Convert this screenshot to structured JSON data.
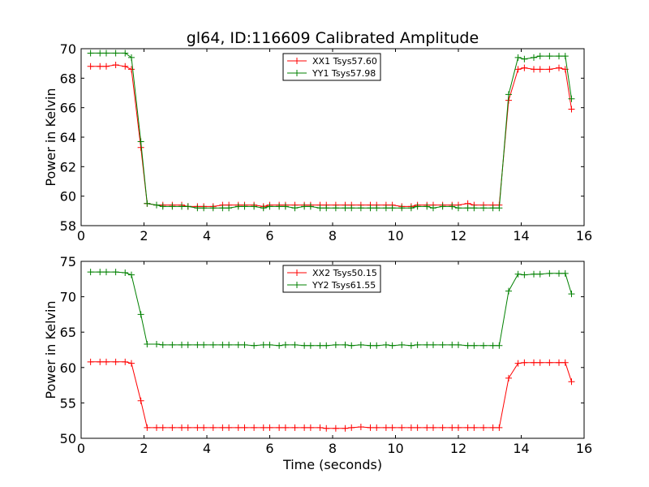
{
  "figure_title": "gl64, ID:116609 Calibrated Amplitude",
  "xlabel": "Time (seconds)",
  "colors": {
    "series1": "#ff0000",
    "series2": "#008000"
  },
  "chart_data": [
    {
      "type": "line",
      "xlabel": "",
      "ylabel": "Power in Kelvin",
      "xlim": [
        0,
        16
      ],
      "ylim": [
        58,
        70
      ],
      "xticks": [
        "0",
        "2",
        "4",
        "6",
        "8",
        "10",
        "12",
        "14",
        "16"
      ],
      "yticks": [
        "58",
        "60",
        "62",
        "64",
        "66",
        "68",
        "70"
      ],
      "grid": false,
      "legend_position": "top-center",
      "x": [
        0.3,
        0.6,
        0.8,
        1.1,
        1.4,
        1.6,
        1.9,
        2.1,
        2.4,
        2.6,
        2.9,
        3.2,
        3.4,
        3.7,
        3.9,
        4.2,
        4.5,
        4.7,
        5.0,
        5.2,
        5.5,
        5.8,
        6.0,
        6.3,
        6.5,
        6.8,
        7.1,
        7.3,
        7.6,
        7.8,
        8.1,
        8.4,
        8.6,
        8.9,
        9.2,
        9.4,
        9.7,
        9.9,
        10.2,
        10.5,
        10.7,
        11.0,
        11.2,
        11.5,
        11.8,
        12.0,
        12.3,
        12.5,
        12.8,
        13.1,
        13.3,
        13.6,
        13.9,
        14.1,
        14.4,
        14.6,
        14.9,
        15.2,
        15.4,
        15.6
      ],
      "series": [
        {
          "name": "XX1 Tsys57.60",
          "color": "#ff0000",
          "values": [
            68.8,
            68.8,
            68.8,
            68.9,
            68.8,
            68.6,
            63.3,
            59.5,
            59.4,
            59.4,
            59.4,
            59.4,
            59.3,
            59.3,
            59.3,
            59.3,
            59.4,
            59.4,
            59.4,
            59.4,
            59.4,
            59.3,
            59.4,
            59.4,
            59.4,
            59.4,
            59.4,
            59.4,
            59.4,
            59.4,
            59.4,
            59.4,
            59.4,
            59.4,
            59.4,
            59.4,
            59.4,
            59.4,
            59.3,
            59.3,
            59.4,
            59.4,
            59.4,
            59.4,
            59.4,
            59.4,
            59.5,
            59.4,
            59.4,
            59.4,
            59.4,
            66.5,
            68.6,
            68.7,
            68.6,
            68.6,
            68.6,
            68.7,
            68.6,
            65.9
          ]
        },
        {
          "name": "YY1 Tsys57.98",
          "color": "#008000",
          "values": [
            69.7,
            69.7,
            69.7,
            69.7,
            69.7,
            69.4,
            63.7,
            59.5,
            59.4,
            59.3,
            59.3,
            59.3,
            59.3,
            59.2,
            59.2,
            59.2,
            59.2,
            59.2,
            59.3,
            59.3,
            59.3,
            59.2,
            59.3,
            59.3,
            59.3,
            59.2,
            59.3,
            59.3,
            59.2,
            59.2,
            59.2,
            59.2,
            59.2,
            59.2,
            59.2,
            59.2,
            59.2,
            59.2,
            59.2,
            59.2,
            59.3,
            59.3,
            59.2,
            59.3,
            59.3,
            59.2,
            59.2,
            59.2,
            59.2,
            59.2,
            59.2,
            66.9,
            69.4,
            69.3,
            69.4,
            69.5,
            69.5,
            69.5,
            69.5,
            66.6
          ]
        }
      ]
    },
    {
      "type": "line",
      "xlabel": "Time (seconds)",
      "ylabel": "Power in Kelvin",
      "xlim": [
        0,
        16
      ],
      "ylim": [
        50,
        75
      ],
      "xticks": [
        "0",
        "2",
        "4",
        "6",
        "8",
        "10",
        "12",
        "14",
        "16"
      ],
      "yticks": [
        "50",
        "55",
        "60",
        "65",
        "70",
        "75"
      ],
      "grid": false,
      "legend_position": "top-center",
      "x": [
        0.3,
        0.6,
        0.8,
        1.1,
        1.4,
        1.6,
        1.9,
        2.1,
        2.4,
        2.6,
        2.9,
        3.2,
        3.4,
        3.7,
        3.9,
        4.2,
        4.5,
        4.7,
        5.0,
        5.2,
        5.5,
        5.8,
        6.0,
        6.3,
        6.5,
        6.8,
        7.1,
        7.3,
        7.6,
        7.8,
        8.1,
        8.4,
        8.6,
        8.9,
        9.2,
        9.4,
        9.7,
        9.9,
        10.2,
        10.5,
        10.7,
        11.0,
        11.2,
        11.5,
        11.8,
        12.0,
        12.3,
        12.5,
        12.8,
        13.1,
        13.3,
        13.6,
        13.9,
        14.1,
        14.4,
        14.6,
        14.9,
        15.2,
        15.4,
        15.6
      ],
      "series": [
        {
          "name": "XX2 Tsys50.15",
          "color": "#ff0000",
          "values": [
            60.8,
            60.8,
            60.8,
            60.8,
            60.8,
            60.6,
            55.3,
            51.5,
            51.5,
            51.5,
            51.5,
            51.5,
            51.5,
            51.5,
            51.5,
            51.5,
            51.5,
            51.5,
            51.5,
            51.5,
            51.5,
            51.5,
            51.5,
            51.5,
            51.5,
            51.5,
            51.5,
            51.5,
            51.5,
            51.4,
            51.4,
            51.4,
            51.5,
            51.6,
            51.5,
            51.5,
            51.5,
            51.5,
            51.5,
            51.5,
            51.5,
            51.5,
            51.5,
            51.5,
            51.5,
            51.5,
            51.5,
            51.5,
            51.5,
            51.5,
            51.5,
            58.5,
            60.6,
            60.7,
            60.7,
            60.7,
            60.7,
            60.7,
            60.7,
            58.0
          ]
        },
        {
          "name": "YY2 Tsys61.55",
          "color": "#008000",
          "values": [
            73.5,
            73.5,
            73.5,
            73.5,
            73.4,
            73.1,
            67.5,
            63.3,
            63.3,
            63.2,
            63.2,
            63.2,
            63.2,
            63.2,
            63.2,
            63.2,
            63.2,
            63.2,
            63.2,
            63.2,
            63.1,
            63.2,
            63.2,
            63.1,
            63.2,
            63.2,
            63.1,
            63.1,
            63.1,
            63.1,
            63.2,
            63.2,
            63.1,
            63.2,
            63.1,
            63.1,
            63.2,
            63.1,
            63.2,
            63.1,
            63.2,
            63.2,
            63.2,
            63.2,
            63.2,
            63.2,
            63.1,
            63.1,
            63.1,
            63.1,
            63.1,
            70.8,
            73.2,
            73.1,
            73.2,
            73.2,
            73.3,
            73.3,
            73.3,
            70.4
          ]
        }
      ]
    }
  ]
}
